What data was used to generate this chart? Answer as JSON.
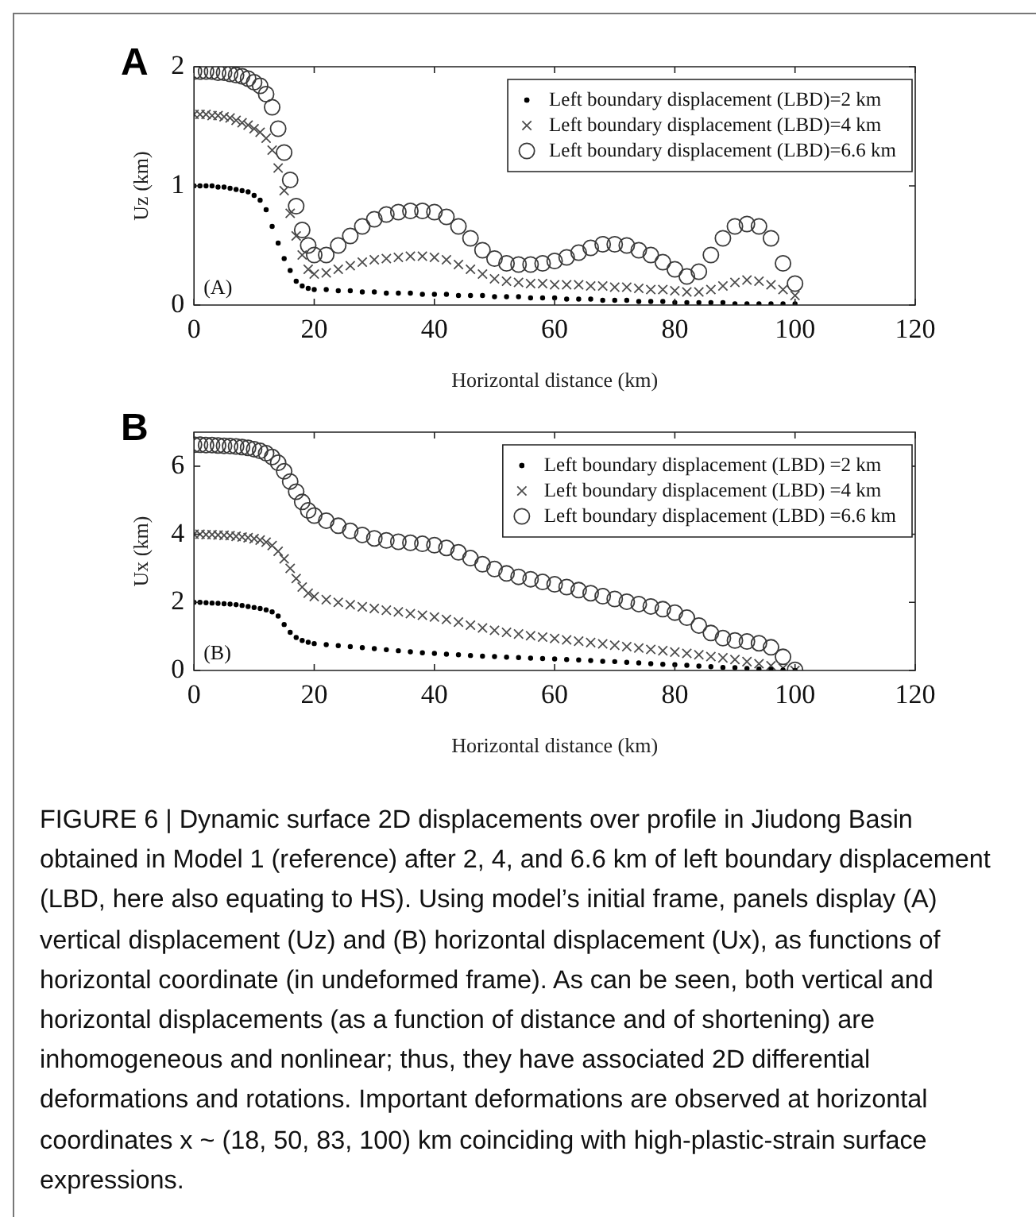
{
  "chart_data": [
    {
      "type": "scatter",
      "title": "A",
      "xlabel": "Horizontal distance (km)",
      "ylabel": "Uz (km)",
      "annotations": [
        "(A)"
      ],
      "x": [
        0,
        1,
        2,
        3,
        4,
        5,
        6,
        7,
        8,
        9,
        10,
        11,
        12,
        13,
        14,
        15,
        16,
        17,
        18,
        19,
        20,
        22,
        24,
        26,
        28,
        30,
        32,
        34,
        36,
        38,
        40,
        42,
        44,
        46,
        48,
        50,
        52,
        54,
        56,
        58,
        60,
        62,
        64,
        66,
        68,
        70,
        72,
        74,
        76,
        78,
        80,
        82,
        84,
        86,
        88,
        90,
        92,
        94,
        96,
        98,
        100
      ],
      "xlim": [
        0,
        120
      ],
      "xticks": [
        0,
        20,
        40,
        60,
        80,
        100,
        120
      ],
      "ylim": [
        0,
        2
      ],
      "yticks": [
        0,
        1,
        2
      ],
      "grid": false,
      "legend": "top right",
      "series": [
        {
          "name": "Left boundary displacement (LBD)=2 km",
          "color": "#000000",
          "marker": "circle",
          "values": [
            1.0,
            1.0,
            1.0,
            1.0,
            0.99,
            0.99,
            0.98,
            0.97,
            0.96,
            0.95,
            0.92,
            0.88,
            0.8,
            0.66,
            0.52,
            0.39,
            0.29,
            0.2,
            0.16,
            0.14,
            0.13,
            0.13,
            0.12,
            0.12,
            0.11,
            0.11,
            0.1,
            0.1,
            0.1,
            0.09,
            0.09,
            0.09,
            0.08,
            0.08,
            0.08,
            0.07,
            0.07,
            0.07,
            0.06,
            0.06,
            0.06,
            0.05,
            0.05,
            0.05,
            0.04,
            0.04,
            0.04,
            0.03,
            0.03,
            0.03,
            0.02,
            0.02,
            0.02,
            0.02,
            0.02,
            0.01,
            0.01,
            0.01,
            0.01,
            0.01,
            0.01
          ]
        },
        {
          "name": "Left boundary displacement (LBD)=4 km",
          "color": "#4d4d4d",
          "marker": "cross",
          "values": [
            1.6,
            1.6,
            1.6,
            1.59,
            1.59,
            1.58,
            1.57,
            1.55,
            1.53,
            1.51,
            1.48,
            1.45,
            1.4,
            1.3,
            1.15,
            0.96,
            0.77,
            0.58,
            0.42,
            0.3,
            0.26,
            0.27,
            0.3,
            0.33,
            0.36,
            0.38,
            0.39,
            0.4,
            0.41,
            0.41,
            0.4,
            0.38,
            0.34,
            0.3,
            0.26,
            0.22,
            0.2,
            0.19,
            0.18,
            0.18,
            0.17,
            0.17,
            0.17,
            0.16,
            0.16,
            0.15,
            0.15,
            0.14,
            0.13,
            0.13,
            0.12,
            0.11,
            0.11,
            0.13,
            0.16,
            0.19,
            0.21,
            0.2,
            0.17,
            0.13,
            0.08
          ]
        },
        {
          "name": "Left boundary displacement (LBD)=6.6 km",
          "color": "#3a3a3a",
          "marker": "circle",
          "values": [
            1.96,
            1.96,
            1.96,
            1.96,
            1.95,
            1.95,
            1.94,
            1.93,
            1.92,
            1.9,
            1.87,
            1.84,
            1.77,
            1.66,
            1.48,
            1.28,
            1.05,
            0.83,
            0.63,
            0.5,
            0.42,
            0.42,
            0.5,
            0.58,
            0.66,
            0.72,
            0.76,
            0.78,
            0.79,
            0.79,
            0.78,
            0.74,
            0.66,
            0.56,
            0.46,
            0.39,
            0.35,
            0.34,
            0.34,
            0.35,
            0.37,
            0.4,
            0.44,
            0.48,
            0.51,
            0.51,
            0.5,
            0.46,
            0.42,
            0.36,
            0.3,
            0.24,
            0.28,
            0.42,
            0.56,
            0.66,
            0.68,
            0.66,
            0.56,
            0.35,
            0.18
          ]
        }
      ]
    },
    {
      "type": "scatter",
      "title": "B",
      "xlabel": "Horizontal distance (km)",
      "ylabel": "Ux (km)",
      "annotations": [
        "(B)",
        "FIGURE 6 | Dynamic surface 2D displacements over profile in Jiudong Basin obtained in Model 1 (reference) after 2, 4, and 6.6 km of left boundary displacement (LBD, here also equating to HS). Using model’s initial frame, panels display (A) vertical displacement (Uz) and (B) horizontal displacement (Ux), as functions of horizontal coordinate (in undeformed frame). As can be seen, both vertical and horizontal displacements (as a function of distance and of shortening) are inhomogeneous and nonlinear; thus, they have associated 2D differential deformations and rotations. Important deformations are observed at horizontal coordinates x ~ (18, 50, 83, 100) km coinciding with high-plastic-strain surface expressions."
      ],
      "x": [
        0,
        1,
        2,
        3,
        4,
        5,
        6,
        7,
        8,
        9,
        10,
        11,
        12,
        13,
        14,
        15,
        16,
        17,
        18,
        19,
        20,
        22,
        24,
        26,
        28,
        30,
        32,
        34,
        36,
        38,
        40,
        42,
        44,
        46,
        48,
        50,
        52,
        54,
        56,
        58,
        60,
        62,
        64,
        66,
        68,
        70,
        72,
        74,
        76,
        78,
        80,
        82,
        84,
        86,
        88,
        90,
        92,
        94,
        96,
        98,
        100
      ],
      "xlim": [
        0,
        120
      ],
      "xticks": [
        0,
        20,
        40,
        60,
        80,
        100,
        120
      ],
      "ylim": [
        0,
        7
      ],
      "yticks": [
        0,
        2,
        4,
        6
      ],
      "grid": false,
      "legend": "top right",
      "series": [
        {
          "name": "Left boundary displacement (LBD) =2 km",
          "color": "#000000",
          "marker": "circle",
          "values": [
            2.0,
            2.0,
            1.99,
            1.98,
            1.97,
            1.96,
            1.95,
            1.93,
            1.91,
            1.88,
            1.85,
            1.82,
            1.78,
            1.72,
            1.6,
            1.35,
            1.12,
            0.97,
            0.88,
            0.83,
            0.79,
            0.76,
            0.73,
            0.7,
            0.67,
            0.64,
            0.61,
            0.58,
            0.55,
            0.52,
            0.5,
            0.48,
            0.46,
            0.44,
            0.42,
            0.41,
            0.39,
            0.38,
            0.36,
            0.35,
            0.34,
            0.32,
            0.31,
            0.29,
            0.27,
            0.26,
            0.24,
            0.22,
            0.2,
            0.18,
            0.17,
            0.15,
            0.13,
            0.11,
            0.09,
            0.08,
            0.06,
            0.04,
            0.03,
            0.01,
            0.0
          ]
        },
        {
          "name": "Left boundary displacement (LBD) =4 km",
          "color": "#4d4d4d",
          "marker": "cross",
          "values": [
            4.0,
            4.0,
            3.99,
            3.99,
            3.98,
            3.97,
            3.96,
            3.94,
            3.92,
            3.9,
            3.87,
            3.83,
            3.77,
            3.67,
            3.5,
            3.28,
            3.0,
            2.7,
            2.45,
            2.27,
            2.17,
            2.08,
            2.0,
            1.93,
            1.87,
            1.82,
            1.77,
            1.72,
            1.67,
            1.62,
            1.57,
            1.5,
            1.42,
            1.33,
            1.25,
            1.18,
            1.12,
            1.07,
            1.02,
            0.98,
            0.94,
            0.9,
            0.86,
            0.82,
            0.78,
            0.74,
            0.7,
            0.66,
            0.62,
            0.58,
            0.54,
            0.5,
            0.46,
            0.41,
            0.37,
            0.32,
            0.26,
            0.2,
            0.14,
            0.07,
            0.0
          ]
        },
        {
          "name": "Left boundary displacement (LBD) =6.6 km",
          "color": "#3a3a3a",
          "marker": "circle",
          "values": [
            6.63,
            6.63,
            6.62,
            6.62,
            6.61,
            6.6,
            6.59,
            6.58,
            6.56,
            6.54,
            6.5,
            6.45,
            6.38,
            6.27,
            6.1,
            5.85,
            5.55,
            5.25,
            4.95,
            4.7,
            4.55,
            4.4,
            4.25,
            4.1,
            3.98,
            3.88,
            3.82,
            3.78,
            3.75,
            3.72,
            3.68,
            3.6,
            3.47,
            3.3,
            3.12,
            2.98,
            2.85,
            2.75,
            2.68,
            2.6,
            2.53,
            2.45,
            2.36,
            2.27,
            2.18,
            2.1,
            2.02,
            1.95,
            1.88,
            1.8,
            1.7,
            1.55,
            1.32,
            1.1,
            0.95,
            0.88,
            0.85,
            0.8,
            0.68,
            0.4,
            0.02
          ]
        }
      ]
    }
  ]
}
